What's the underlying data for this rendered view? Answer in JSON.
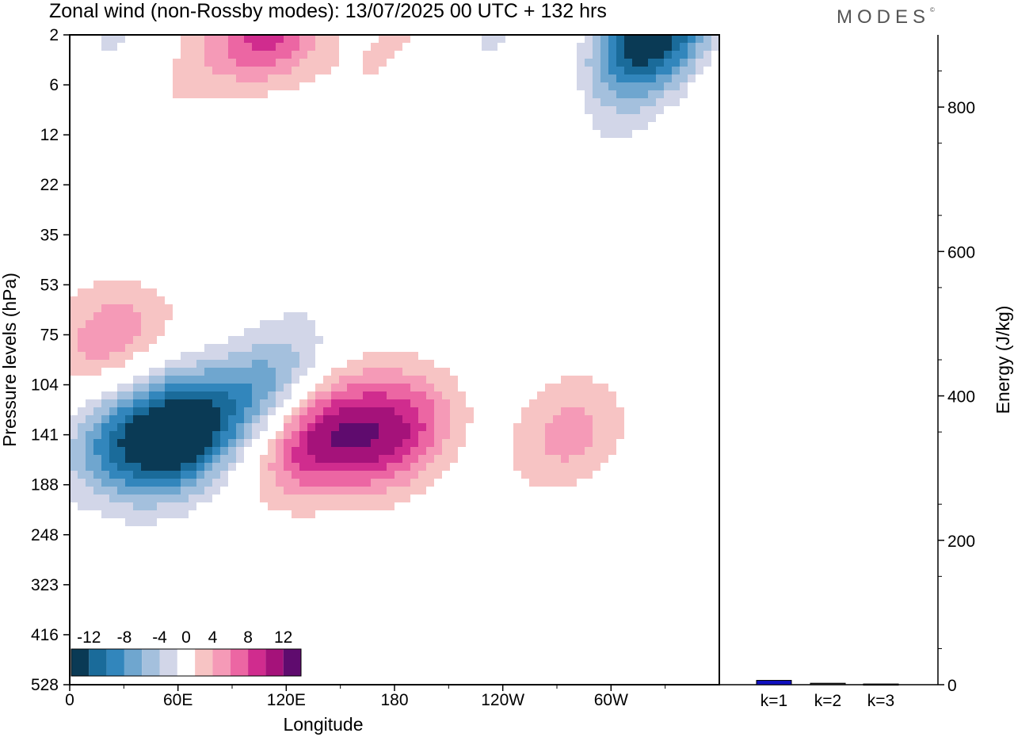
{
  "header": {
    "title": "Zonal wind (non-Rossby modes):  13/07/2025  00 UTC  + 132 hrs",
    "logo": "MODES",
    "logo_mark": "©"
  },
  "colors": {
    "scale": [
      "#0a3a55",
      "#1a6b9a",
      "#3286bc",
      "#6fa6cf",
      "#a4c0dd",
      "#d2d6e8",
      "#ffffff",
      "#f7c4c4",
      "#f59ab7",
      "#ec66a3",
      "#d02c8e",
      "#a5127a",
      "#5f0b6e"
    ],
    "bar_fill": "#1010c0"
  },
  "chart_data": [
    {
      "type": "heatmap",
      "xlabel": "Longitude",
      "ylabel": "Pressure levels (hPa)",
      "x_ticks": [
        "0",
        "60E",
        "120E",
        "180",
        "120W",
        "60W"
      ],
      "y_ticks": [
        "2",
        "6",
        "12",
        "22",
        "35",
        "53",
        "75",
        "104",
        "141",
        "188",
        "248",
        "323",
        "416",
        "528"
      ],
      "colorbar_labels": [
        "-12",
        "-8",
        "-4",
        "0",
        "4",
        "8",
        "12"
      ],
      "colorbar_levels": [
        -14,
        -12,
        -10,
        -8,
        -6,
        -4,
        -2,
        2,
        4,
        6,
        8,
        10,
        12,
        14
      ],
      "features": [
        {
          "lon": 62,
          "level": "141",
          "value": -14
        },
        {
          "lon": 28,
          "level": "141",
          "value": -8
        },
        {
          "lon": 112,
          "level": "104",
          "value": -6
        },
        {
          "lon": 138,
          "level": "141",
          "value": 10
        },
        {
          "lon": 180,
          "level": "141",
          "value": 10
        },
        {
          "lon": 278,
          "level": "141",
          "value": 5
        },
        {
          "lon": 318,
          "level": "2",
          "value": -14
        },
        {
          "lon": 116,
          "level": "2",
          "value": 10
        },
        {
          "lon": 22,
          "level": "75",
          "value": 6
        }
      ]
    },
    {
      "type": "bar",
      "ylabel": "Energy (J/kg)",
      "categories": [
        "k=1",
        "k=2",
        "k=3"
      ],
      "values": [
        6,
        2,
        1
      ],
      "ylim": [
        0,
        900
      ],
      "y_ticks": [
        "0",
        "200",
        "400",
        "600",
        "800"
      ]
    }
  ]
}
